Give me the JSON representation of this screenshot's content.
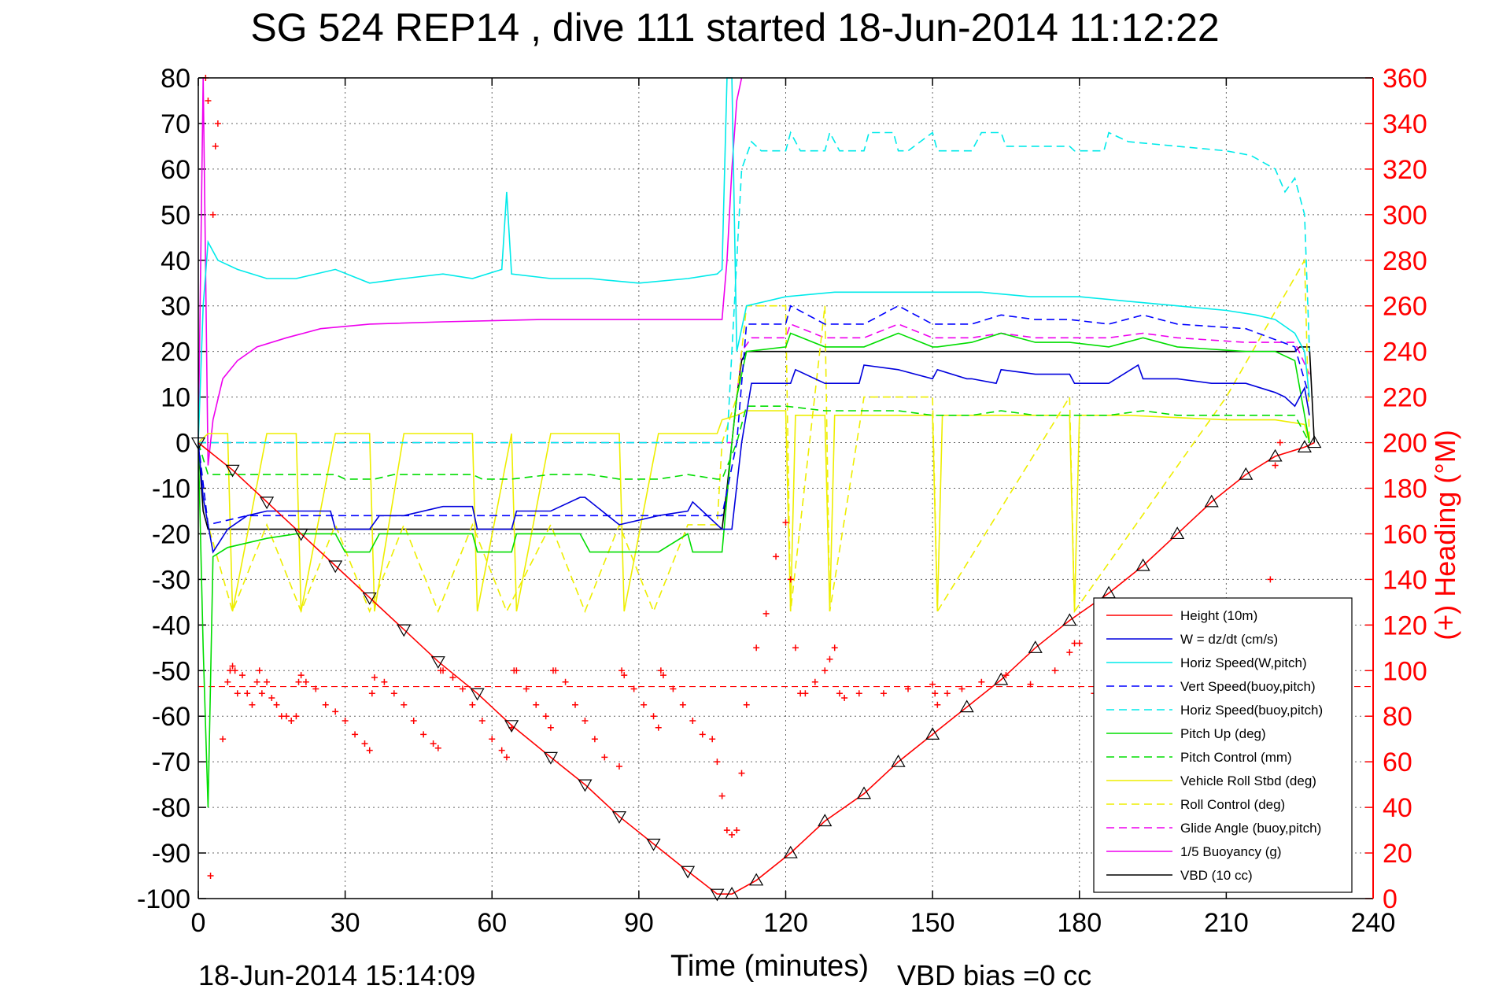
{
  "chart_data": {
    "type": "line",
    "title": "SG 524   REP14  , dive 111 started 18-Jun-2014 11:12:22",
    "xlabel": "Time (minutes)",
    "ylabel_left": "",
    "ylabel_right": "(+) Heading (°M)",
    "footer_date": "18-Jun-2014 15:14:09",
    "footer_bias": "VBD bias =0 cc",
    "xlim": [
      0,
      240
    ],
    "ylim_left": [
      -100,
      80
    ],
    "ylim_right": [
      0,
      360
    ],
    "x_ticks": [
      "0",
      "30",
      "60",
      "90",
      "120",
      "150",
      "180",
      "210",
      "240"
    ],
    "y_ticks_left": [
      "80",
      "70",
      "60",
      "50",
      "40",
      "30",
      "20",
      "10",
      "0",
      "-10",
      "-20",
      "-30",
      "-40",
      "-50",
      "-60",
      "-70",
      "-80",
      "-90",
      "-100"
    ],
    "y_ticks_right": [
      "360",
      "340",
      "320",
      "300",
      "280",
      "260",
      "240",
      "220",
      "200",
      "180",
      "160",
      "140",
      "120",
      "100",
      "80",
      "60",
      "40",
      "20",
      "0"
    ],
    "grid": true,
    "legend_position": "bottom-right",
    "heading_reference_line": 93,
    "series": [
      {
        "name": "Height (10m)",
        "color": "#ff0000",
        "style": "solid",
        "axis": "left",
        "x": [
          0,
          7,
          14,
          21,
          28,
          35,
          42,
          49,
          57,
          64,
          72,
          79,
          86,
          93,
          100,
          106,
          109,
          114,
          121,
          128,
          136,
          143,
          150,
          157,
          164,
          171,
          178,
          186,
          193,
          200,
          207,
          214,
          220,
          226,
          228
        ],
        "y": [
          0,
          -6,
          -13,
          -20,
          -27,
          -34,
          -41,
          -48,
          -55,
          -62,
          -69,
          -75,
          -82,
          -88,
          -94,
          -99,
          -99,
          -96,
          -90,
          -83,
          -77,
          -70,
          -64,
          -58,
          -52,
          -45,
          -39,
          -33,
          -27,
          -20,
          -13,
          -7,
          -3,
          -1,
          0
        ]
      },
      {
        "name": "W = dz/dt (cm/s)",
        "color": "#0000dd",
        "style": "solid",
        "axis": "left",
        "x": [
          0,
          1,
          3,
          6,
          10,
          14,
          20,
          27,
          28,
          35,
          37,
          42,
          50,
          56,
          57,
          64,
          65,
          72,
          78,
          79,
          86,
          94,
          100,
          101,
          106,
          107,
          109,
          111,
          113,
          121,
          122,
          128,
          129,
          135,
          136,
          143,
          150,
          151,
          157,
          158,
          163,
          164,
          171,
          178,
          179,
          186,
          192,
          193,
          200,
          207,
          214,
          220,
          222,
          224,
          226,
          227
        ],
        "y": [
          0,
          -12,
          -24,
          -19,
          -16,
          -15,
          -15,
          -15,
          -19,
          -19,
          -16,
          -16,
          -14,
          -14,
          -19,
          -19,
          -15,
          -15,
          -12,
          -12,
          -18,
          -16,
          -15,
          -13,
          -18,
          -19,
          -19,
          0,
          13,
          13,
          16,
          13,
          13,
          13,
          17,
          16,
          14,
          16,
          14,
          14,
          13,
          16,
          15,
          15,
          13,
          13,
          17,
          14,
          14,
          13,
          13,
          11,
          10,
          8,
          12,
          6
        ]
      },
      {
        "name": "Horiz Speed(W,pitch)",
        "color": "#00eaea",
        "style": "solid",
        "axis": "left",
        "x": [
          0,
          1,
          2,
          4,
          8,
          14,
          20,
          28,
          35,
          42,
          50,
          56,
          62,
          63,
          64,
          72,
          80,
          90,
          100,
          106,
          107,
          108,
          109,
          110,
          112,
          120,
          130,
          140,
          150,
          160,
          170,
          180,
          190,
          200,
          210,
          216,
          220,
          224,
          226,
          227
        ],
        "y": [
          0,
          30,
          44,
          40,
          38,
          36,
          36,
          38,
          35,
          36,
          37,
          36,
          38,
          55,
          37,
          36,
          36,
          35,
          36,
          37,
          38,
          80,
          80,
          20,
          30,
          32,
          33,
          33,
          33,
          33,
          32,
          32,
          31,
          30,
          29,
          28,
          27,
          24,
          20,
          10
        ]
      },
      {
        "name": "Vert Speed(buoy,pitch)",
        "color": "#0000ff",
        "style": "dashed",
        "axis": "left",
        "x": [
          0,
          2,
          10,
          30,
          50,
          70,
          90,
          106,
          107,
          110,
          112,
          120,
          121,
          128,
          129,
          136,
          143,
          150,
          151,
          158,
          164,
          171,
          178,
          186,
          193,
          200,
          214,
          224,
          227
        ],
        "y": [
          0,
          -18,
          -16,
          -16,
          -16,
          -16,
          -16,
          -16,
          -16,
          0,
          26,
          26,
          30,
          26,
          26,
          26,
          30,
          26,
          26,
          26,
          28,
          27,
          27,
          26,
          28,
          26,
          25,
          21,
          10
        ]
      },
      {
        "name": "Horiz Speed(buoy,pitch)",
        "color": "#00eaea",
        "style": "dashed",
        "axis": "left",
        "x": [
          0,
          108,
          109,
          111,
          113,
          115,
          120,
          121,
          123,
          128,
          129,
          131,
          136,
          137,
          142,
          143,
          145,
          150,
          151,
          158,
          160,
          164,
          165,
          178,
          179,
          185,
          186,
          190,
          200,
          210,
          215,
          220,
          222,
          224,
          226,
          227
        ],
        "y": [
          0,
          0,
          20,
          60,
          66,
          64,
          64,
          68,
          64,
          64,
          68,
          64,
          64,
          68,
          68,
          64,
          64,
          68,
          64,
          64,
          68,
          68,
          65,
          65,
          64,
          64,
          68,
          66,
          65,
          64,
          63,
          60,
          55,
          58,
          50,
          20
        ]
      },
      {
        "name": "Pitch Up (deg)",
        "color": "#00dd00",
        "style": "solid",
        "axis": "left",
        "x": [
          0,
          1,
          2,
          3,
          6,
          14,
          20,
          28,
          30,
          35,
          37,
          50,
          56,
          57,
          62,
          64,
          65,
          72,
          78,
          80,
          86,
          94,
          100,
          101,
          106,
          107,
          109,
          110,
          112,
          120,
          121,
          128,
          129,
          136,
          143,
          150,
          151,
          158,
          164,
          171,
          178,
          186,
          193,
          200,
          214,
          220,
          224,
          227
        ],
        "y": [
          0,
          -45,
          -80,
          -25,
          -23,
          -21,
          -20,
          -20,
          -24,
          -24,
          -20,
          -20,
          -20,
          -24,
          -24,
          -24,
          -20,
          -20,
          -20,
          -24,
          -24,
          -24,
          -20,
          -24,
          -24,
          -24,
          0,
          10,
          20,
          21,
          24,
          21,
          21,
          21,
          24,
          21,
          21,
          22,
          24,
          22,
          22,
          21,
          23,
          21,
          20,
          20,
          18,
          0
        ]
      },
      {
        "name": "Pitch Control (mm)",
        "color": "#00dd00",
        "style": "dashed",
        "axis": "left",
        "x": [
          0,
          2,
          10,
          20,
          28,
          30,
          36,
          40,
          50,
          56,
          58,
          64,
          72,
          80,
          86,
          94,
          100,
          106,
          107,
          110,
          112,
          120,
          128,
          136,
          143,
          150,
          158,
          164,
          171,
          178,
          186,
          193,
          200,
          214,
          224,
          227
        ],
        "y": [
          0,
          -7,
          -7,
          -7,
          -7,
          -8,
          -8,
          -7,
          -7,
          -7,
          -8,
          -8,
          -7,
          -7,
          -8,
          -8,
          -7,
          -8,
          -8,
          0,
          8,
          8,
          7,
          7,
          7,
          6,
          6,
          7,
          6,
          6,
          6,
          7,
          6,
          6,
          6,
          0
        ]
      },
      {
        "name": "Vehicle Roll Stbd (deg)",
        "color": "#eeee00",
        "style": "solid",
        "axis": "left",
        "x": [
          0,
          2,
          6,
          7,
          14,
          20,
          21,
          28,
          35,
          36,
          42,
          50,
          56,
          57,
          64,
          65,
          72,
          80,
          86,
          87,
          94,
          100,
          106,
          107,
          110,
          112,
          120,
          121,
          122,
          128,
          129,
          130,
          136,
          143,
          150,
          151,
          152,
          160,
          178,
          179,
          180,
          190,
          210,
          220,
          226,
          227
        ],
        "y": [
          0,
          2,
          2,
          -37,
          2,
          2,
          -37,
          2,
          2,
          -37,
          2,
          2,
          2,
          -37,
          2,
          -37,
          2,
          2,
          2,
          -37,
          2,
          2,
          2,
          5,
          6,
          7,
          7,
          -37,
          6,
          6,
          -37,
          6,
          6,
          6,
          6,
          -37,
          6,
          6,
          6,
          -37,
          6,
          6,
          5,
          5,
          4,
          0
        ]
      },
      {
        "name": "Roll Control (deg)",
        "color": "#eeee00",
        "style": "dashed",
        "axis": "left",
        "x": [
          0,
          2,
          7,
          14,
          21,
          28,
          35,
          42,
          49,
          56,
          63,
          72,
          79,
          86,
          93,
          100,
          106,
          107,
          110,
          112,
          120,
          121,
          128,
          129,
          136,
          150,
          151,
          178,
          179,
          210,
          226,
          227
        ],
        "y": [
          0,
          -18,
          -37,
          -18,
          -37,
          -18,
          -37,
          -18,
          -37,
          -18,
          -37,
          -18,
          -37,
          -18,
          -37,
          -18,
          -18,
          0,
          10,
          30,
          30,
          -37,
          30,
          -37,
          10,
          10,
          -37,
          10,
          -37,
          10,
          40,
          0
        ]
      },
      {
        "name": "Glide Angle (buoy,pitch)",
        "color": "#ee00ee",
        "style": "dashed",
        "axis": "left",
        "x": [
          0,
          108,
          109,
          111,
          113,
          120,
          121,
          128,
          129,
          136,
          143,
          150,
          158,
          164,
          171,
          178,
          186,
          193,
          200,
          214,
          224,
          227
        ],
        "y": [
          0,
          0,
          0,
          20,
          23,
          23,
          26,
          23,
          23,
          23,
          26,
          23,
          23,
          24,
          23,
          23,
          23,
          24,
          23,
          22,
          22,
          15
        ]
      },
      {
        "name": "1/5 Buoyancy (g)",
        "color": "#ee00ee",
        "style": "solid",
        "axis": "left",
        "x": [
          0,
          1,
          2,
          3,
          5,
          8,
          12,
          18,
          25,
          35,
          50,
          70,
          90,
          107,
          108,
          109,
          110,
          111
        ],
        "y": [
          0,
          80,
          -5,
          5,
          14,
          18,
          21,
          23,
          25,
          26,
          26.5,
          27,
          27,
          27,
          40,
          60,
          75,
          80
        ]
      },
      {
        "name": "VBD (10 cc)",
        "color": "#000000",
        "style": "solid",
        "axis": "left",
        "x": [
          0,
          1,
          2,
          3,
          50,
          100,
          106,
          107,
          108,
          109,
          110,
          111,
          112,
          120,
          150,
          200,
          224,
          225,
          226,
          227,
          228
        ],
        "y": [
          0,
          -15,
          -19,
          -19,
          -19,
          -19,
          -19,
          -19,
          -10,
          0,
          10,
          18,
          20,
          20,
          20,
          20,
          20,
          21,
          21,
          21,
          0
        ]
      }
    ],
    "heading": {
      "name": "(+) Heading (°M)",
      "color": "#ff0000",
      "axis": "right",
      "x": [
        1.5,
        2,
        2.5,
        3,
        3.5,
        4,
        5,
        6,
        6.5,
        7,
        7.5,
        8,
        9,
        10,
        11,
        12,
        12.5,
        13,
        14,
        15,
        16,
        17,
        18,
        19,
        20,
        20.5,
        21,
        22,
        24,
        26,
        28,
        30,
        32,
        34,
        35,
        35.5,
        36,
        38,
        40,
        42,
        44,
        46,
        48,
        49,
        49.5,
        50,
        52,
        54,
        56,
        58,
        60,
        62,
        63,
        64,
        64.5,
        65,
        67,
        69,
        71,
        72,
        72.5,
        73,
        75,
        77,
        79,
        81,
        83,
        86,
        86.5,
        87,
        89,
        91,
        93,
        94,
        94.5,
        95,
        97,
        99,
        101,
        103,
        105,
        106,
        107,
        108,
        109,
        110,
        111,
        112,
        114,
        116,
        118,
        120,
        121,
        122,
        123,
        124,
        126,
        128,
        129,
        130,
        131,
        132,
        135,
        140,
        145,
        150,
        150.5,
        151,
        153,
        156,
        160,
        165,
        170,
        175,
        178,
        179,
        180,
        183,
        186,
        189,
        192,
        196,
        200,
        205,
        210,
        215,
        216,
        218,
        219,
        220,
        221
      ],
      "y": [
        360,
        350,
        10,
        300,
        330,
        340,
        70,
        95,
        100,
        102,
        100,
        90,
        98,
        90,
        85,
        95,
        100,
        90,
        95,
        88,
        85,
        80,
        80,
        78,
        80,
        95,
        98,
        95,
        92,
        85,
        82,
        78,
        72,
        68,
        65,
        90,
        97,
        95,
        90,
        85,
        78,
        72,
        68,
        66,
        100,
        100,
        97,
        92,
        85,
        78,
        70,
        65,
        62,
        75,
        100,
        100,
        92,
        85,
        80,
        75,
        100,
        100,
        95,
        85,
        78,
        70,
        62,
        58,
        100,
        98,
        92,
        85,
        80,
        75,
        100,
        98,
        92,
        85,
        78,
        72,
        70,
        60,
        45,
        30,
        28,
        30,
        55,
        85,
        110,
        125,
        150,
        165,
        140,
        110,
        90,
        90,
        95,
        100,
        105,
        110,
        90,
        88,
        90,
        90,
        92,
        94,
        90,
        85,
        90,
        92,
        95,
        98,
        94,
        100,
        108,
        112,
        112,
        90,
        87,
        93,
        98,
        102,
        88,
        85,
        90,
        95,
        100,
        130,
        140,
        190,
        200
      ]
    }
  }
}
